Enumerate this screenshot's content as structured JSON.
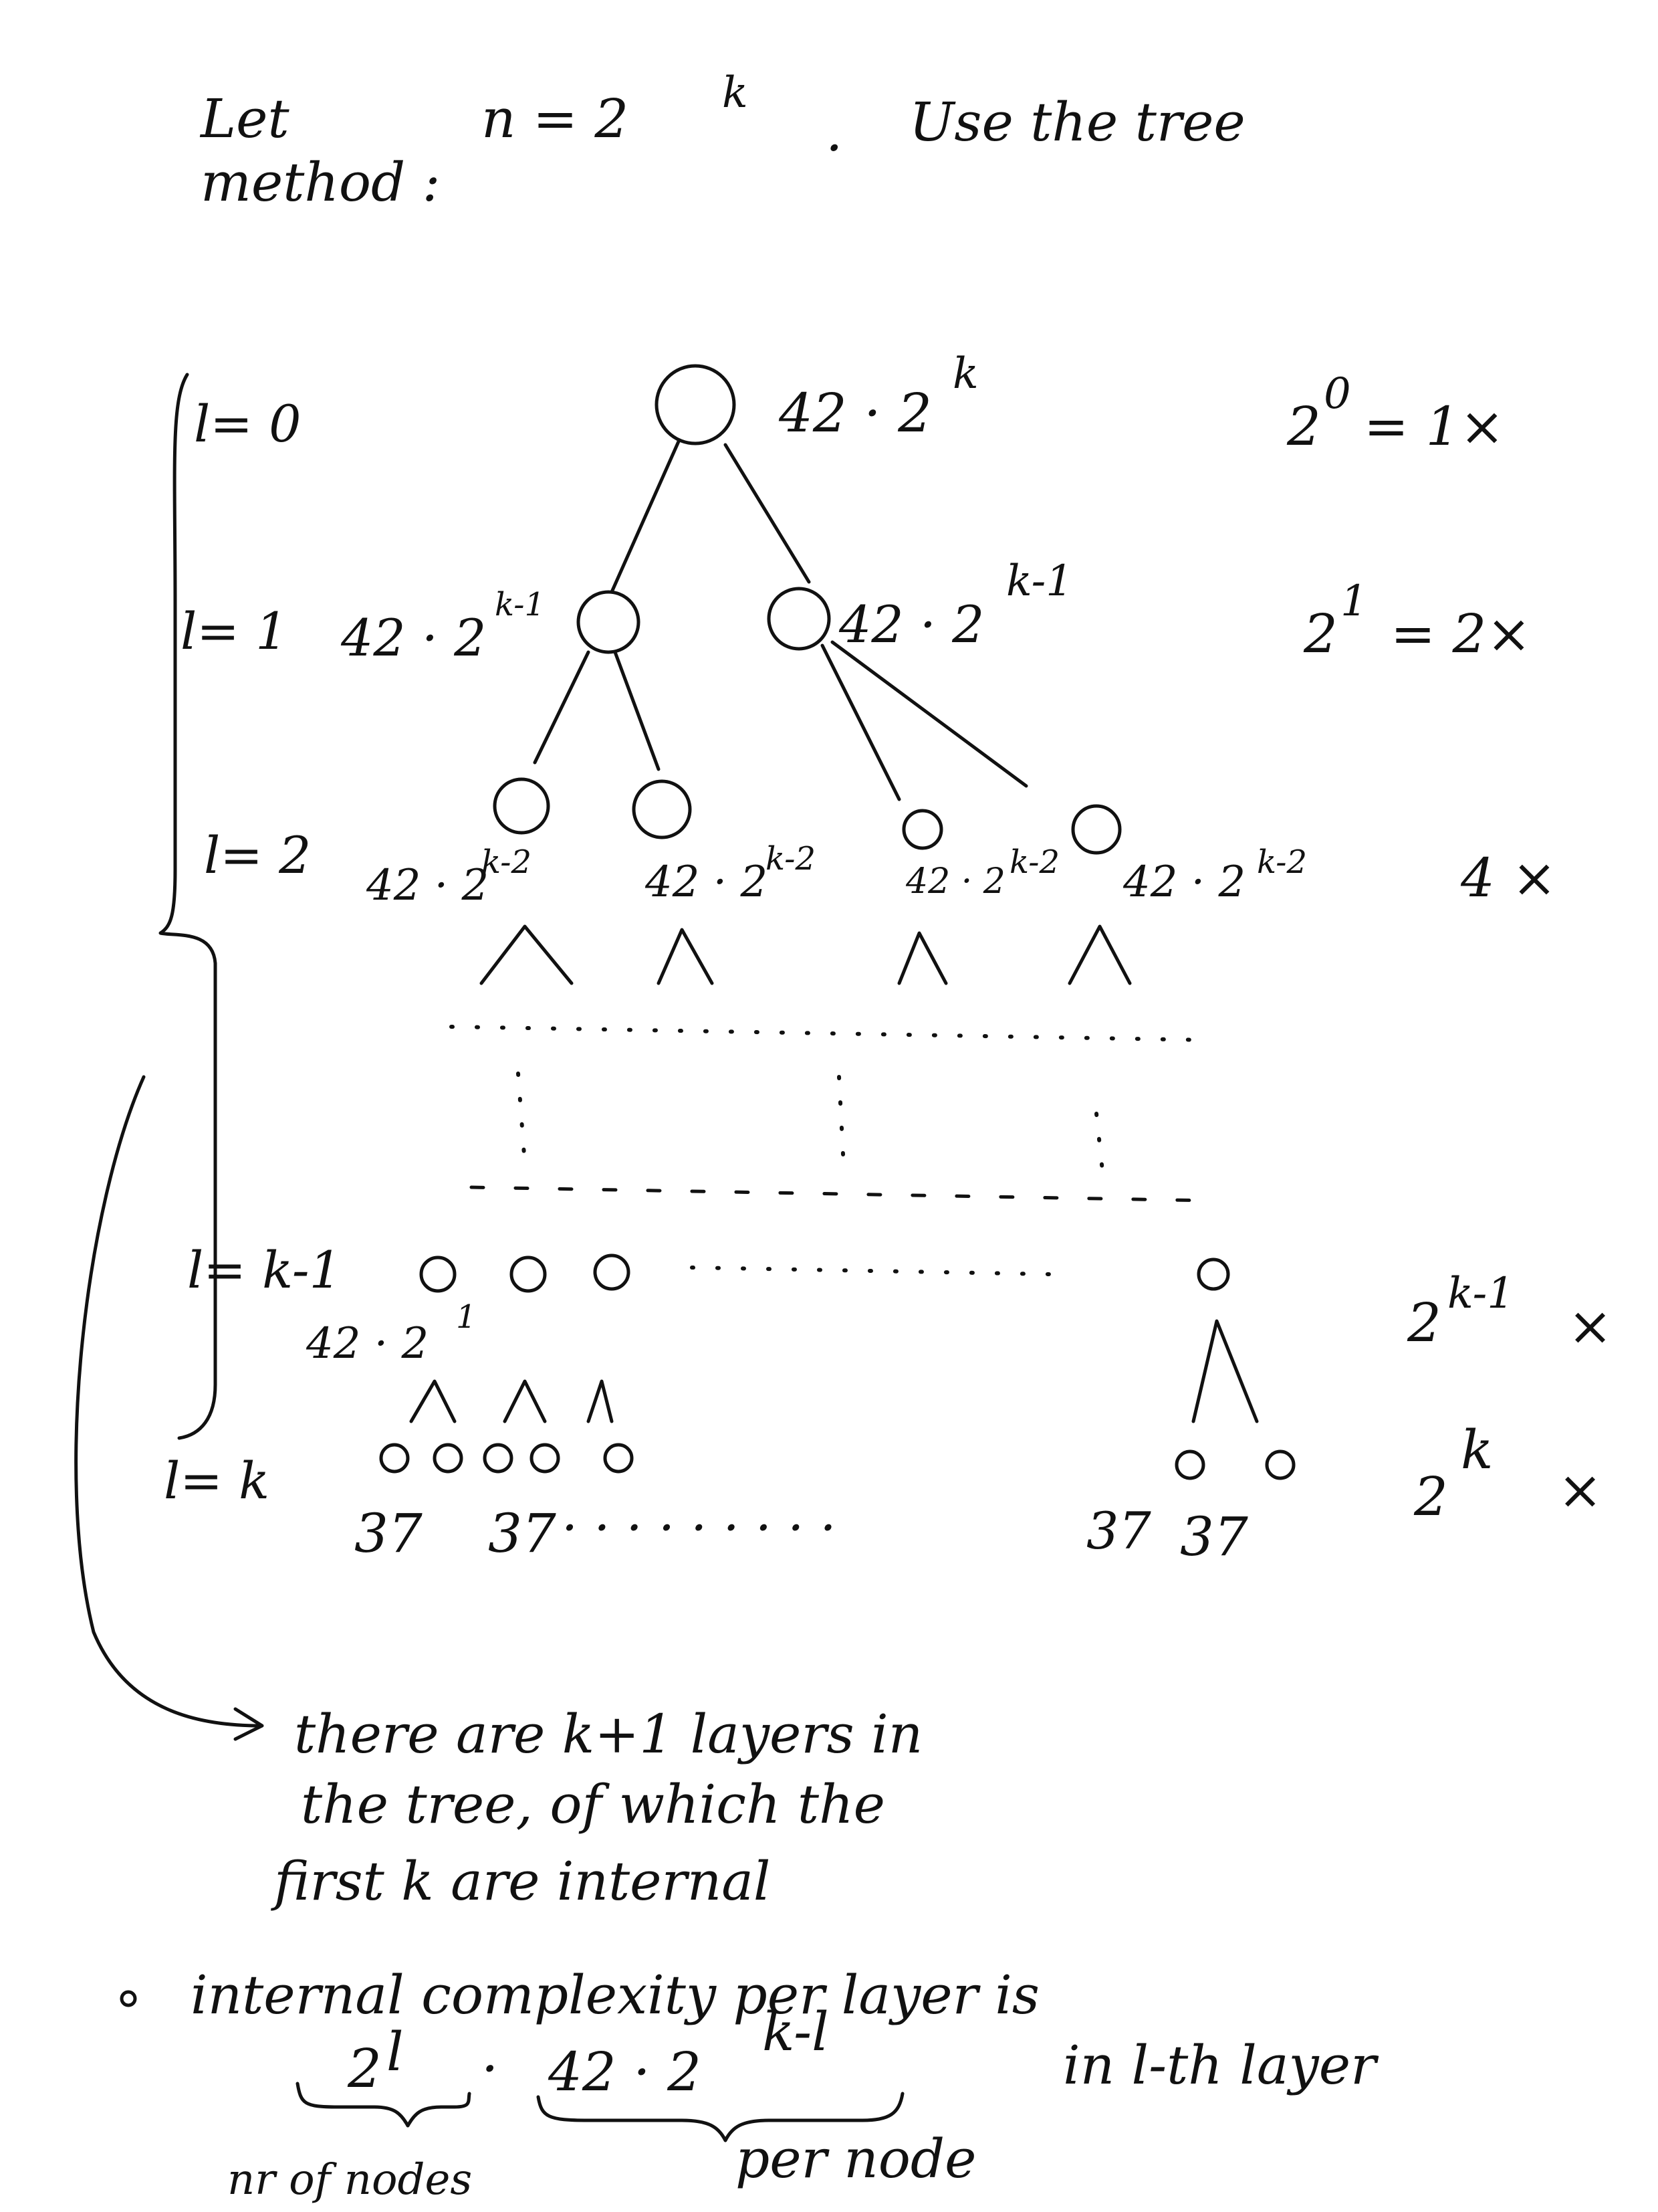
{
  "intro": {
    "line1_let": "Let",
    "line1_n": "n = 2",
    "line1_k": "k",
    "line1_dot": ".",
    "line1_rest": "Use the tree",
    "line2": "method :"
  },
  "levels": {
    "l0": "l= 0",
    "l1": "l= 1",
    "l2": "l= 2",
    "lk1": "l= k-1",
    "lk": "l= k"
  },
  "labels": {
    "root_base": "42 · 2",
    "root_exp": "k",
    "l1_base": "42 · 2",
    "l1_exp": "k-1",
    "l2_base": "42 · 2",
    "l2_exp": "k-2",
    "lk1_base": "42 · 2",
    "lk1_exp": "1",
    "leaf": "37",
    "leaf_dots": "· · · · · · · · ·"
  },
  "counts": {
    "c0_base": "2",
    "c0_exp": "0",
    "c0_rest": "= 1×",
    "c1_base": "2",
    "c1_exp": "1",
    "c1_rest": "= 2×",
    "c2": "4 ×",
    "ck1_base": "2",
    "ck1_exp": "k-1",
    "ck1_x": "×",
    "ck_base": "2",
    "ck_exp": "k",
    "ck_x": "×"
  },
  "note": {
    "line1": "there are k+1 layers in",
    "line2": "the tree, of which the",
    "line3": "first k are internal"
  },
  "bullet": {
    "line1": "internal complexity per layer is",
    "formula_left": "2",
    "formula_left_exp": "l",
    "formula_dot": "·",
    "formula_right": "42 · 2",
    "formula_right_exp": "k-l",
    "formula_suffix": "in l-th layer",
    "brace_left_label": "nr of nodes",
    "brace_right_label": "per node"
  }
}
